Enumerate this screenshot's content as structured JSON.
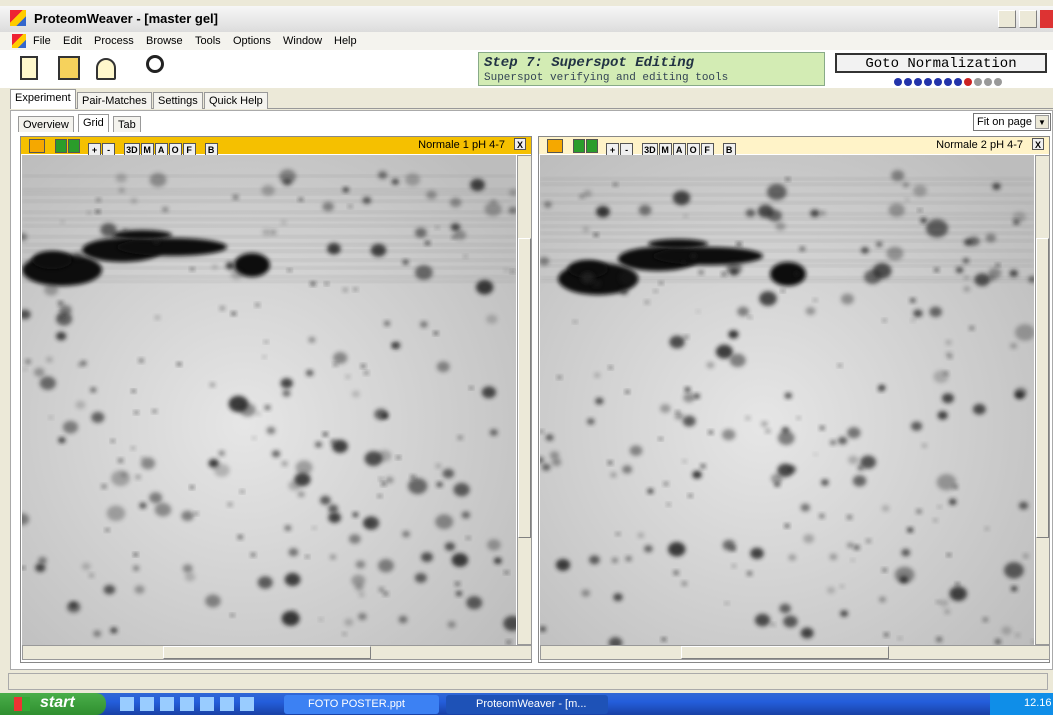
{
  "window": {
    "title": "ProteomWeaver - [master gel]"
  },
  "menu": [
    "File",
    "Edit",
    "Process",
    "Browse",
    "Tools",
    "Options",
    "Window",
    "Help"
  ],
  "step": {
    "title": "Step 7: Superspot Editing",
    "subtitle": "Superspot verifying and editing tools"
  },
  "goto_button": "Goto Normalization",
  "tabs": [
    "Experiment",
    "Pair-Matches",
    "Settings",
    "Quick Help"
  ],
  "view_tabs": [
    "Overview",
    "Grid",
    "Tab"
  ],
  "zoom": "Fit on page",
  "panel_tools": [
    "+",
    "-",
    "3D",
    "M",
    "A",
    "O",
    "F",
    "B"
  ],
  "close_label": "X",
  "panels": [
    {
      "title": "Normale 1 pH 4-7"
    },
    {
      "title": "Normale 2 pH 4-7"
    }
  ],
  "taskbar": {
    "start": "start",
    "items": [
      "FOTO POSTER.ppt",
      "ProteomWeaver - [m..."
    ],
    "clock": "12.16"
  }
}
